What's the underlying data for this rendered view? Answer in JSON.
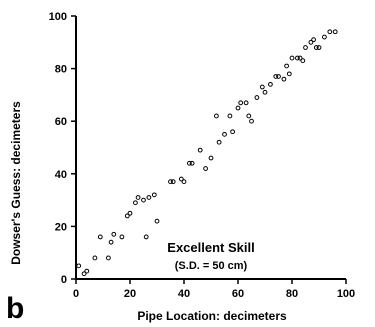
{
  "panel_label": "b",
  "chart_data": {
    "type": "scatter",
    "xlabel": "Pipe Location: decimeters",
    "ylabel": "Dowser's Guess: decimeters",
    "xlim": [
      0,
      100
    ],
    "ylim": [
      0,
      100
    ],
    "x_ticks": [
      0,
      20,
      40,
      60,
      80,
      100
    ],
    "y_ticks": [
      0,
      20,
      40,
      60,
      80,
      100
    ],
    "x_tick_labels": [
      "0",
      "20",
      "40",
      "60",
      "80",
      "100"
    ],
    "y_tick_labels": [
      "0",
      "20",
      "40",
      "60",
      "80",
      "100"
    ],
    "grid": false,
    "annotation": {
      "title": "Excellent Skill",
      "subtitle": "(S.D. = 50 cm)"
    },
    "points": [
      [
        1,
        5
      ],
      [
        3,
        2
      ],
      [
        4,
        3
      ],
      [
        7,
        8
      ],
      [
        9,
        16
      ],
      [
        12,
        8
      ],
      [
        13,
        14
      ],
      [
        14,
        17
      ],
      [
        17,
        16
      ],
      [
        19,
        24
      ],
      [
        20,
        25
      ],
      [
        22,
        29
      ],
      [
        23,
        31
      ],
      [
        25,
        30
      ],
      [
        26,
        16
      ],
      [
        27,
        31
      ],
      [
        29,
        32
      ],
      [
        30,
        22
      ],
      [
        35,
        37
      ],
      [
        36,
        37
      ],
      [
        39,
        38
      ],
      [
        40,
        37
      ],
      [
        42,
        44
      ],
      [
        43,
        44
      ],
      [
        46,
        49
      ],
      [
        48,
        42
      ],
      [
        50,
        46
      ],
      [
        52,
        62
      ],
      [
        53,
        52
      ],
      [
        55,
        55
      ],
      [
        57,
        62
      ],
      [
        58,
        56
      ],
      [
        60,
        65
      ],
      [
        61,
        67
      ],
      [
        63,
        67
      ],
      [
        64,
        62
      ],
      [
        65,
        60
      ],
      [
        67,
        69
      ],
      [
        69,
        73
      ],
      [
        70,
        71
      ],
      [
        72,
        74
      ],
      [
        74,
        77
      ],
      [
        75,
        77
      ],
      [
        77,
        76
      ],
      [
        78,
        81
      ],
      [
        79,
        78
      ],
      [
        80,
        84
      ],
      [
        82,
        84
      ],
      [
        83,
        84
      ],
      [
        84,
        83
      ],
      [
        85,
        88
      ],
      [
        87,
        90
      ],
      [
        88,
        91
      ],
      [
        89,
        88
      ],
      [
        90,
        88
      ],
      [
        92,
        92
      ],
      [
        94,
        94
      ],
      [
        96,
        94
      ]
    ]
  }
}
